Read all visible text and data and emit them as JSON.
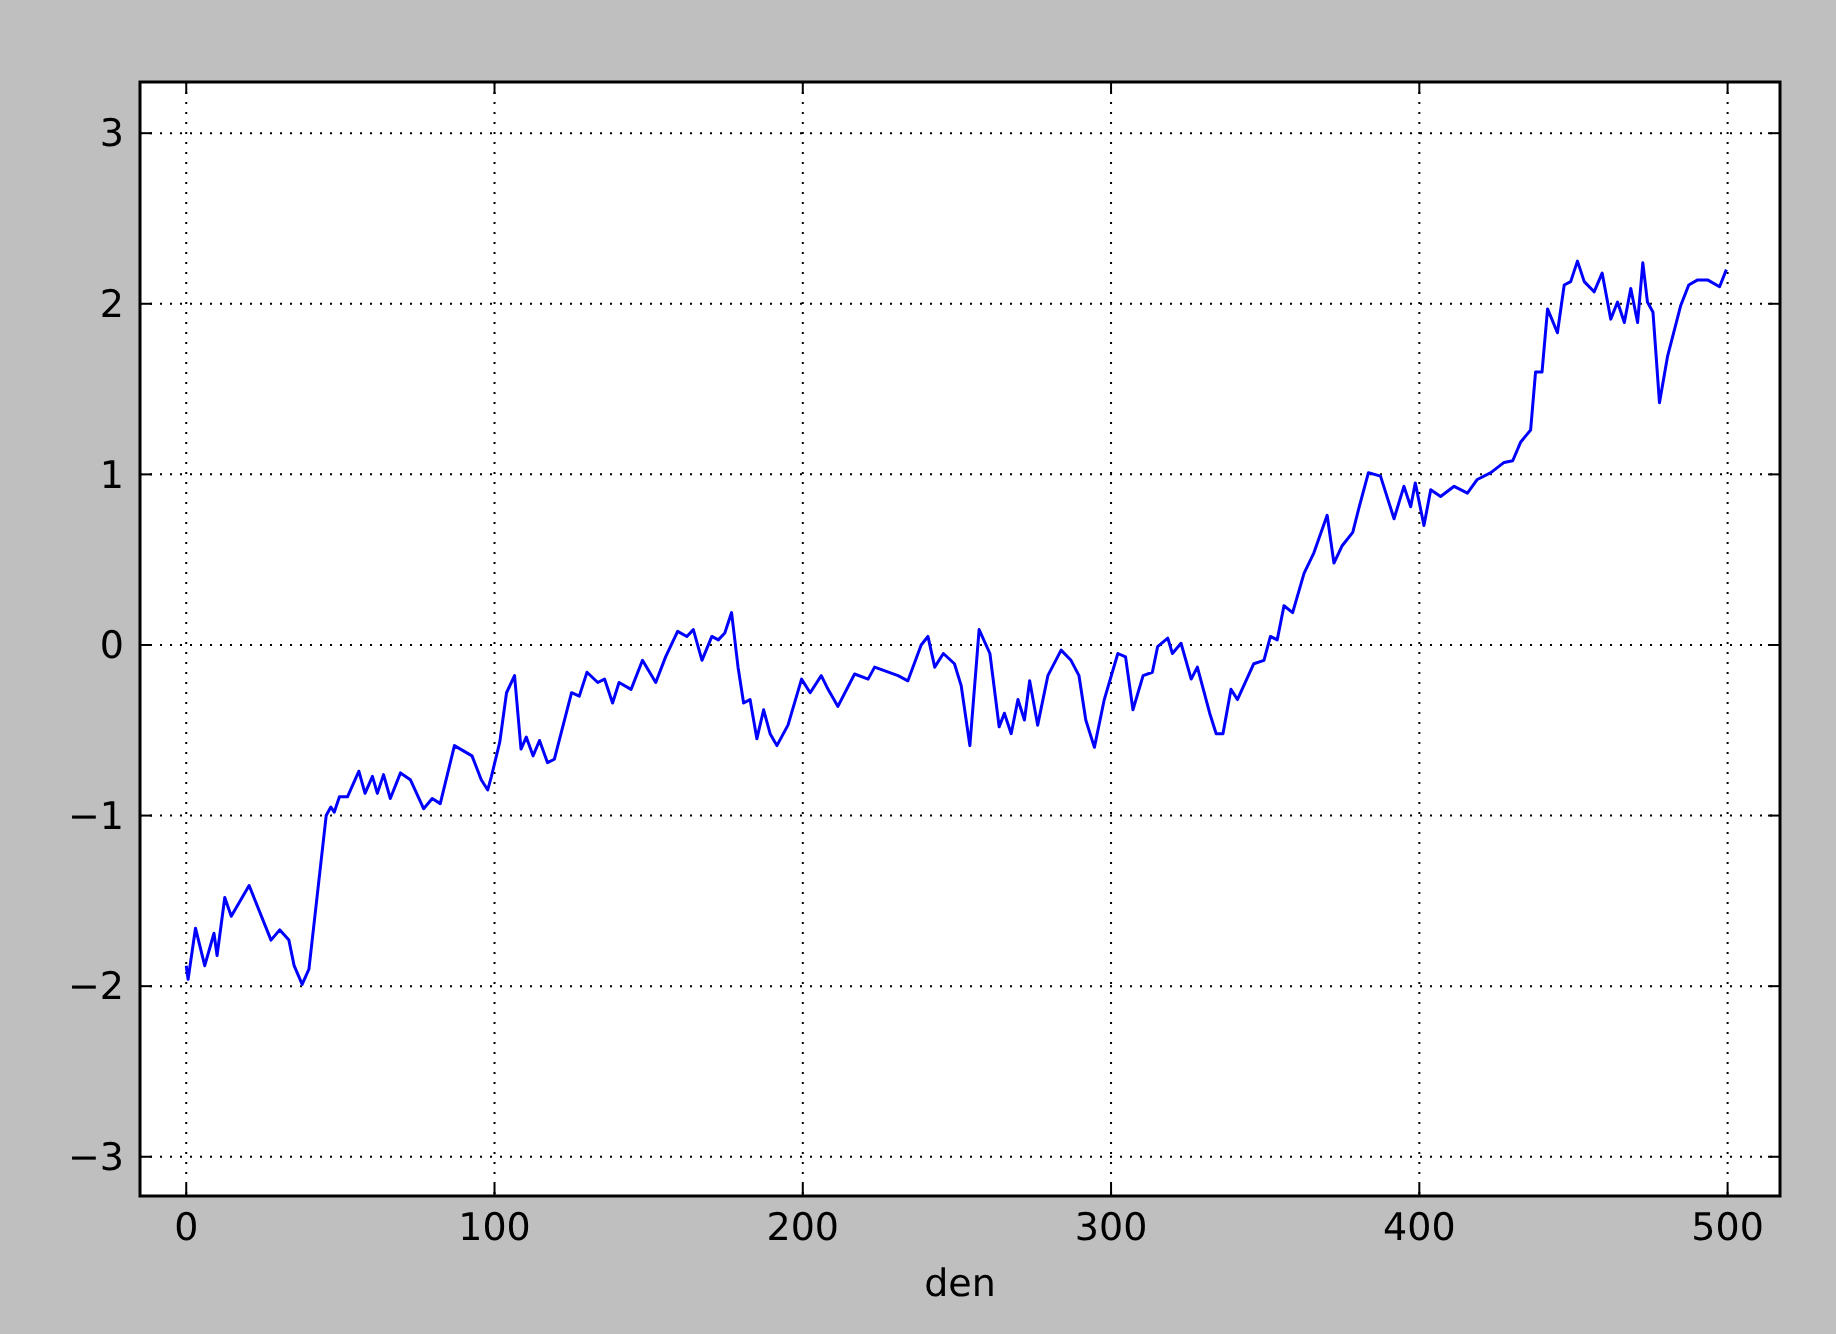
{
  "chart_data": {
    "type": "line",
    "xlabel": "den",
    "xlim": [
      -15,
      517
    ],
    "ylim": [
      -3.23,
      3.3
    ],
    "xticks": [
      0,
      100,
      200,
      300,
      400,
      500
    ],
    "yticks": [
      {
        "value": -3,
        "label": "−3"
      },
      {
        "value": -2,
        "label": "−2"
      },
      {
        "value": -1,
        "label": "−1"
      },
      0,
      1,
      2,
      3
    ],
    "grid": true,
    "line_style": "solid",
    "marker": "none",
    "series": [
      {
        "color": "#0000ff",
        "x": [
          0,
          0.6,
          3,
          6,
          9,
          10,
          12.5,
          14.6,
          20.4,
          27.5,
          30.3,
          33.3,
          35,
          37.6,
          39.8,
          45.4,
          46.9,
          48,
          49.7,
          52.3,
          56,
          58,
          60.4,
          62,
          64,
          66.2,
          69.5,
          72.7,
          77,
          79.8,
          82.4,
          87,
          92.7,
          95.7,
          97.8,
          99,
          101.7,
          103.9,
          106.5,
          108.6,
          110.3,
          112.5,
          114.6,
          117.2,
          119.4,
          125,
          127.5,
          130,
          133.5,
          135.7,
          138.3,
          140.4,
          144.3,
          148,
          152.3,
          155.5,
          159.4,
          162.4,
          164.5,
          167.3,
          170.5,
          172.6,
          174.7,
          176.9,
          179,
          180.8,
          182.9,
          185.1,
          187.3,
          189.4,
          191.6,
          195.2,
          199.6,
          202.4,
          206,
          208.2,
          211.4,
          216.8,
          221.2,
          223.3,
          230.9,
          234.1,
          238.4,
          240.6,
          242.8,
          245.6,
          249.2,
          251.4,
          254.2,
          257.2,
          260.7,
          263.7,
          265.4,
          267.6,
          269.8,
          271.9,
          273.6,
          276.2,
          279.5,
          283.8,
          287,
          289.6,
          291.8,
          294.6,
          297.8,
          302.2,
          304.7,
          307.1,
          310.4,
          313.4,
          315.1,
          318.4,
          319.9,
          322.7,
          326,
          328,
          332,
          334.1,
          336.3,
          338.9,
          341,
          346.3,
          349.6,
          351.7,
          353.9,
          356.1,
          358.9,
          362.6,
          365.8,
          370.1,
          372.3,
          374.9,
          378.4,
          380.5,
          383.5,
          387.4,
          391.8,
          395,
          397.2,
          398.7,
          401.5,
          403.7,
          406.9,
          411.3,
          415.6,
          418.8,
          423.2,
          427.5,
          430.3,
          432.9,
          436.1,
          437.7,
          439.8,
          441.6,
          444.8,
          447,
          449.1,
          451.3,
          453.5,
          456.7,
          459.3,
          462.1,
          464.3,
          466.5,
          468.6,
          470.8,
          472.5,
          474,
          475.8,
          477.9,
          480.5,
          484.8,
          487.4,
          490.3,
          493.5,
          497.4,
          499.6
        ],
        "values": [
          -1.88,
          -1.96,
          -1.66,
          -1.88,
          -1.69,
          -1.82,
          -1.48,
          -1.59,
          -1.41,
          -1.73,
          -1.67,
          -1.73,
          -1.88,
          -1.99,
          -1.9,
          -1,
          -0.95,
          -0.98,
          -0.89,
          -0.89,
          -0.74,
          -0.87,
          -0.77,
          -0.87,
          -0.76,
          -0.9,
          -0.75,
          -0.79,
          -0.96,
          -0.9,
          -0.93,
          -0.59,
          -0.65,
          -0.79,
          -0.85,
          -0.77,
          -0.57,
          -0.28,
          -0.18,
          -0.61,
          -0.54,
          -0.65,
          -0.56,
          -0.69,
          -0.67,
          -0.28,
          -0.3,
          -0.16,
          -0.22,
          -0.2,
          -0.34,
          -0.22,
          -0.26,
          -0.09,
          -0.22,
          -0.07,
          0.08,
          0.05,
          0.09,
          -0.09,
          0.05,
          0.03,
          0.07,
          0.19,
          -0.13,
          -0.34,
          -0.32,
          -0.55,
          -0.38,
          -0.52,
          -0.59,
          -0.47,
          -0.2,
          -0.28,
          -0.18,
          -0.26,
          -0.36,
          -0.17,
          -0.2,
          -0.13,
          -0.18,
          -0.21,
          0,
          0.05,
          -0.13,
          -0.05,
          -0.11,
          -0.24,
          -0.59,
          0.09,
          -0.05,
          -0.48,
          -0.4,
          -0.52,
          -0.32,
          -0.44,
          -0.21,
          -0.47,
          -0.18,
          -0.03,
          -0.09,
          -0.18,
          -0.44,
          -0.6,
          -0.32,
          -0.05,
          -0.07,
          -0.38,
          -0.18,
          -0.16,
          -0.01,
          0.04,
          -0.05,
          0.01,
          -0.2,
          -0.13,
          -0.4,
          -0.52,
          -0.52,
          -0.26,
          -0.32,
          -0.11,
          -0.09,
          0.05,
          0.03,
          0.23,
          0.19,
          0.42,
          0.54,
          0.76,
          0.48,
          0.58,
          0.66,
          0.81,
          1.01,
          0.99,
          0.74,
          0.93,
          0.81,
          0.95,
          0.7,
          0.91,
          0.87,
          0.93,
          0.89,
          0.97,
          1.01,
          1.07,
          1.08,
          1.19,
          1.26,
          1.6,
          1.6,
          1.97,
          1.83,
          2.11,
          2.13,
          2.25,
          2.13,
          2.07,
          2.18,
          1.91,
          2.01,
          1.89,
          2.09,
          1.89,
          2.24,
          2.01,
          1.95,
          1.42,
          1.69,
          1.99,
          2.11,
          2.14,
          2.14,
          2.1,
          2.2
        ]
      }
    ]
  }
}
